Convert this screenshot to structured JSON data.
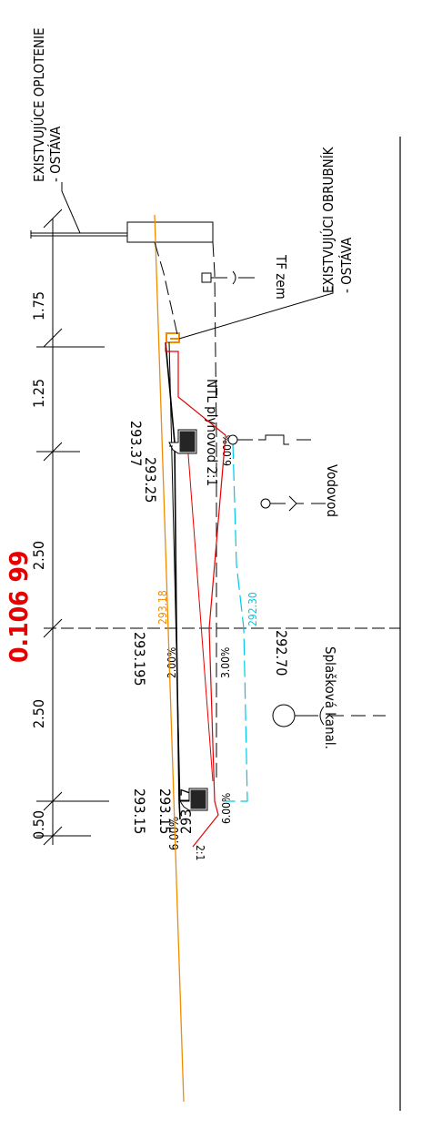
{
  "existing_fence": {
    "line1": "EXISTVUJÚCE OPLOTENIE",
    "line2": "- OSTÁVA"
  },
  "existing_curb": {
    "line1": "EXISTVUJÚCI OBRUBNÍK",
    "line2": "- OSTÁVA"
  },
  "station": "0.106 99",
  "dimensions": [
    "1.75",
    "1.25",
    "2.50",
    "2.50",
    "0.50"
  ],
  "elevations": {
    "curb_right_top": "293.37",
    "curb_right_bottom": "293.25",
    "axis_existing": "293.18",
    "axis_design": "293.195",
    "axis_subgrade": "292.70",
    "axis_water": "292.30",
    "curb_left_top": "293.15",
    "curb_left_mid": "293.17",
    "curb_left_bottom": "293.15"
  },
  "slopes": {
    "road_right": "2.00%",
    "subgrade_right": "3.00%",
    "right_curb_side": "6.00%",
    "left_curb_side": "6.00%",
    "left_subgrade": "6.00%",
    "embankment_left": "2:1"
  },
  "utilities": {
    "telecom": "TF zem",
    "gas": "NTL plynovod 2:1",
    "water": "Vodovod",
    "sewer": "Splašková  kanal."
  },
  "colors": {
    "station": "#e60000",
    "existing_terrain": "#f08c00",
    "design_layer": "#e60000",
    "groundwater": "#00c8e6",
    "linework": "#000000"
  }
}
